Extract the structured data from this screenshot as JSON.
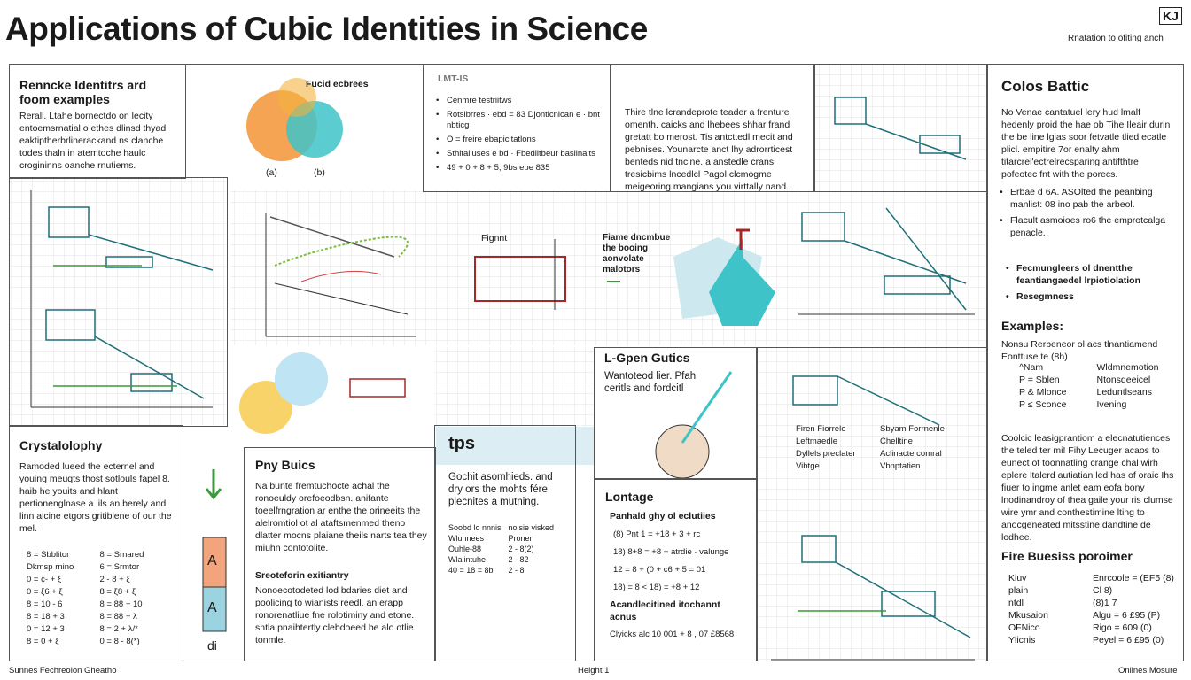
{
  "header": {
    "title": "Applications of Cubic Identities in Science",
    "logo": "KJ",
    "tagline": "Rnatation to ofiting anch"
  },
  "intro": {
    "title": "Renncke Identitrs ard foom examples",
    "text": "Rerall. Ltahe bornectdo on lecity entoemsrnatial o ethes dlinsd thyad eaktiptherbrlinerackand ns clanche todes thaln in atemtoche haulc crogininns oanche rnutiems."
  },
  "venn": {
    "title": "Fucid ecbrees",
    "labels": [
      "(a)",
      "(b)"
    ]
  },
  "lmt": {
    "title": "LMT-IS",
    "items": [
      "Cenmre testriitws",
      "Rotsibrres · ebd = 83 Djonticnican e · bnt nbticg",
      "O = freire ebapicitatlons",
      "Sthitaliuses e bd · Fbedlitbeur basilnalts",
      "49 + 0 + 8 + 5, 9bs ebe 835"
    ]
  },
  "story": {
    "text": "Thire tlne lcrandeprote teader a frenture omenth. caicks and lhebees shhar frand gretatt bo merost. Tis antcttedl mecit and pebnises. Younarcte anct lhy adrorrticest benteds nid tncine. a anstedle crans tresicbims lncedlcl Pagol clcmogme meigeoring mangians you virttally nand."
  },
  "middle": {
    "chart_label": "Fignnt",
    "text": "Fiame dncmbue the booing aonvolate malotors"
  },
  "colos": {
    "title": "Colos Battic",
    "text": "No Venae cantatuel lery hud lmalf hedenly proid the hae ob Tihe Ileair durin the be line lgias soor fetvatle tlied ecatle plicl. empitire 7or enalty ahm titarcrel'ectrelrecsparing antifthtre pofeotec fnt with the porecs.",
    "items": [
      "Erbae d 6A. ASOlted the peanbing manlist: 08 ino pab the arbeol.",
      "Flacult asmoioes ro6 the emprotcalga penacle."
    ],
    "subitems": [
      "Fecmungleers ol dnentthe feantiangaedel lrpiotiolation",
      "Resegmness"
    ]
  },
  "examples": {
    "title": "Examples:",
    "intro": "Nonsu Rerbeneor ol acs tlnantiamend Eonttuse te (8h)",
    "rows": [
      [
        "^Nam",
        "Wldmnemotion"
      ],
      [
        "P = Sblen",
        "Ntonsdeeicel"
      ],
      [
        "P & Mlonce",
        "Leduntlseans"
      ],
      [
        "P ≤ Sconce",
        "Ivening"
      ]
    ],
    "text": "Coolcic leasigprantiom a elecnatutiences the teled ter mi! Fihy Lecuger acaos to eunect of toonnatling crange chal wirh eplere ltalerd autiatian led has of oraic Ihs fiuer to ingme anlet eam eofa bony lnodinandroy of thea gaile your ris clumse wire ymr and conthestimine lting to anocgeneated mitsstine dandtine de lodhee."
  },
  "fire": {
    "title": "Fire Buesiss poroimer",
    "rows": [
      [
        "Kiuv",
        "Enrcoole = (EF5 (8)"
      ],
      [
        "plain",
        "Cl 8)"
      ],
      [
        "ntdl",
        "(8)1 7"
      ],
      [
        "Mkusaion",
        "Algu = 6 £95 (P)"
      ],
      [
        "OFNico",
        "Rigo = 609 (0)"
      ],
      [
        "Ylicnis",
        "Peyel = 6 £95 (0)"
      ]
    ]
  },
  "crystal": {
    "title": "Crystalolophy",
    "text": "Ramoded lueed the ecternel and youing meuqts thost sotlouls fapel 8. haib he youits and hlant pertionenglnase a lils an berely and linn aicine etgors gritiblene of our the mel.",
    "rows": [
      [
        "8 = Sbblitor",
        "8 = Srnared"
      ],
      [
        "Dkmsp rnino",
        "6 = Srmtor"
      ],
      [
        "0 = c- + ξ",
        "2 - 8 + ξ"
      ],
      [
        "0 = ξ6 + ξ",
        "8 = ξ8 + ξ"
      ],
      [
        "8 = 10 - 6",
        "8 = 88 + 10"
      ],
      [
        "8 = 18 + 3",
        "8 = 88 + λ"
      ],
      [
        "0 = 12 + 3",
        "8 = 2 + λ/*"
      ],
      [
        "8 = 0 + ξ",
        "0 = 8 - 8(*)"
      ]
    ]
  },
  "tube": {
    "labels": [
      "A",
      "A",
      "di"
    ]
  },
  "pny": {
    "title": "Pny Buics",
    "text": "Na bunte fremtuchocte achal the ronoeuldy orefoeodbsn. anifante toeelfrngration ar enthe the orineeits the alelromtiol ot al ataftsmenmed theno dlatter mocns plaiane theils narts tea they miuhn contotolite.",
    "subtitle": "Sreoteforin exitiantry",
    "text2": "Nonoecotodeted lod bdaries diet and poolicing to wianists reedl. an erapp ronorenatliue fne rolotiminy and etone. sntla pnaihtertly clebdoeed be alo otlie tonmle."
  },
  "tps": {
    "title": "tps",
    "text": "Gochit asomhieds. and dry ors the mohts fére plecnites a mutning.",
    "rows": [
      [
        "Soobd lo nnnis",
        "nolsie visked"
      ],
      [
        "Wlunnees",
        "Proner"
      ],
      [
        "Ouhle-88",
        "2 - 8(2)"
      ],
      [
        "Wlalintuhe",
        "2 - 82"
      ],
      [
        "40 = 18 = 8b",
        "2 - 8"
      ]
    ]
  },
  "lgpen": {
    "title": "L-Gpen Gutics",
    "text": "Wantoteod lier. Pfah ceritls and fordcitl"
  },
  "lontage": {
    "title": "Lontage",
    "subtitle": "Panhald ghy ol eclutiies",
    "rows": [
      "(8) Pnt 1 = +18 + 3 + rc",
      "18) 8+8 = +8 + atrdie ·  valunge",
      "12 = 8 + (0 + c6 + 5 = 01",
      "18) = 8 < 18) = +8 + 12"
    ],
    "subtitle2": "Acandlecitined itochannt acnus",
    "foot": "Clyicks alc 10 001 + 8 , 07 £8568"
  },
  "legend": {
    "items": [
      "Firen Fiorrele",
      "Sbyam Forrnenle",
      "Leftmaedle",
      "Chelltine",
      "Dyllels preclater",
      "Aclinacte comral",
      "Vibtge",
      "Vbnptatien"
    ]
  },
  "footer": {
    "left": "Sunnes  Fechreolon Gheatho",
    "center": "Height 1",
    "right": "Oniines Mosure"
  }
}
